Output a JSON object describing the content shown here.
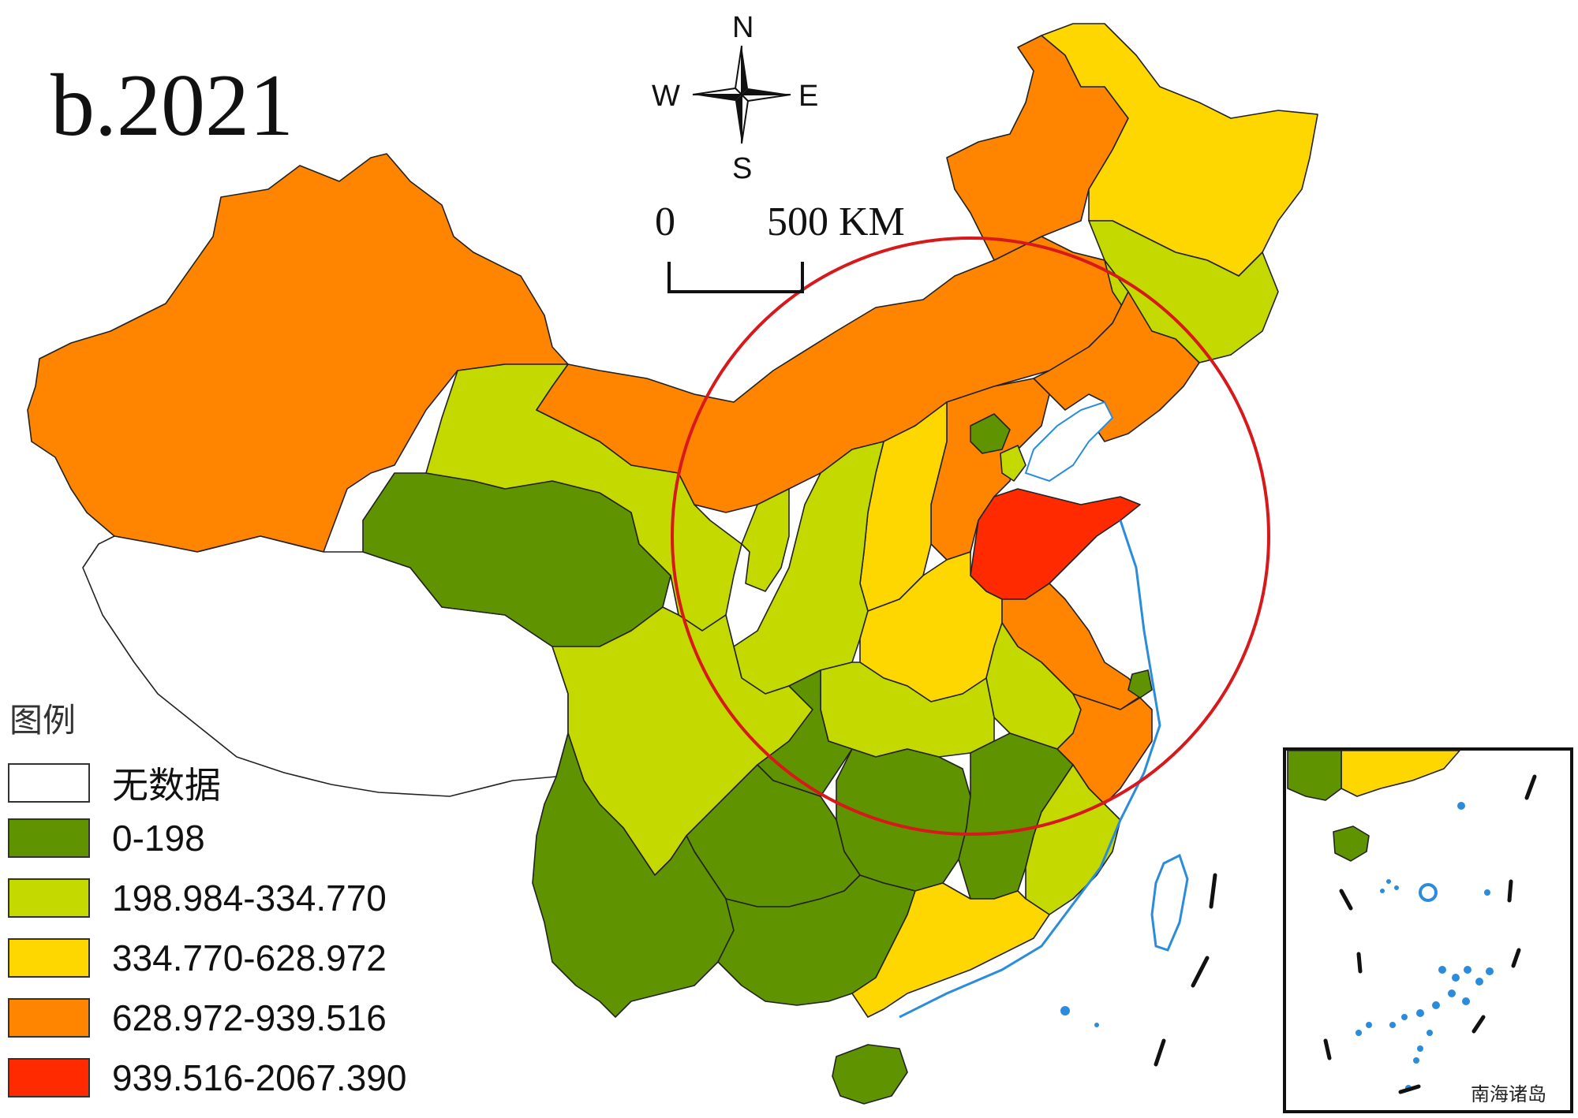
{
  "map": {
    "title": "b.2021",
    "scale_bar": {
      "start_label": "0",
      "end_label": "500 KM"
    },
    "compass": {
      "north": "N",
      "south": "S",
      "east": "E",
      "west": "W"
    },
    "inset_label": "南海诸岛",
    "highlight_circle_color": "#d7191c",
    "water_color": "#2b8cdb"
  },
  "legend": {
    "title": "图例",
    "items": [
      {
        "label": "无数据",
        "color": "#ffffff"
      },
      {
        "label": "0-198",
        "color": "#5f9400"
      },
      {
        "label": "198.984-334.770",
        "color": "#c3d900"
      },
      {
        "label": "334.770-628.972",
        "color": "#ffd700"
      },
      {
        "label": "628.972-939.516",
        "color": "#ff8400"
      },
      {
        "label": "939.516-2067.390",
        "color": "#ff2a00"
      }
    ]
  }
}
